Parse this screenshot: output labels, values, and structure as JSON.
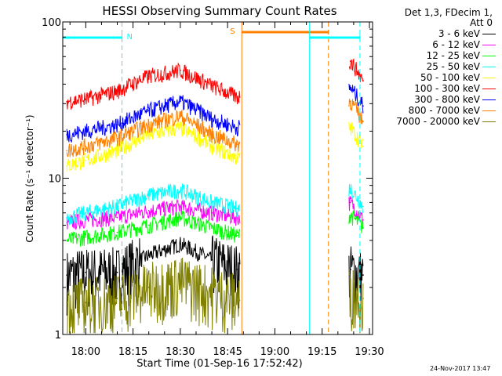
{
  "chart_data": {
    "type": "line",
    "title": "HESSI Observing Summary Count Rates",
    "xlabel": "Start Time (01-Sep-16 17:52:42)",
    "ylabel": "Count Rate (s⁻¹ detector⁻¹)",
    "yscale": "log",
    "ylim": [
      1,
      100
    ],
    "x_unit": "time (HH:MM, 01-Sep-16)",
    "xlim": [
      "17:52:42",
      "19:31:00"
    ],
    "x_ticks": [
      "18:00",
      "18:15",
      "18:30",
      "18:45",
      "19:00",
      "19:15",
      "19:30"
    ],
    "y_ticks": [
      "1",
      "10",
      "100"
    ],
    "legend_header": [
      "Det 1,3, FDecim 1,",
      "Att 0"
    ],
    "legend_position": "right, outside plot",
    "series": [
      {
        "name": "3 - 6 keV",
        "color": "#000000",
        "x": [
          "17:54",
          "18:00",
          "18:10",
          "18:20",
          "18:30",
          "18:40",
          "18:48",
          "19:24",
          "19:28"
        ],
        "y": [
          2.4,
          2.5,
          2.5,
          3.2,
          3.8,
          3.0,
          2.6,
          2.6,
          2.4
        ]
      },
      {
        "name": "6 - 12 keV",
        "color": "#ff00ff",
        "x": [
          "17:54",
          "18:00",
          "18:10",
          "18:20",
          "18:30",
          "18:40",
          "18:48",
          "19:24",
          "19:28"
        ],
        "y": [
          5.2,
          5.4,
          5.6,
          6.2,
          6.6,
          6.0,
          5.6,
          7.0,
          5.4
        ]
      },
      {
        "name": "12 - 25 keV",
        "color": "#00ff00",
        "x": [
          "17:54",
          "18:00",
          "18:10",
          "18:20",
          "18:30",
          "18:40",
          "18:48",
          "19:24",
          "19:28"
        ],
        "y": [
          4.0,
          4.2,
          4.5,
          5.0,
          5.6,
          4.8,
          4.3,
          5.8,
          4.8
        ]
      },
      {
        "name": "25 - 50 keV",
        "color": "#00ffff",
        "x": [
          "17:54",
          "18:00",
          "18:10",
          "18:20",
          "18:30",
          "18:40",
          "18:48",
          "19:24",
          "19:28"
        ],
        "y": [
          5.6,
          6.0,
          6.6,
          7.8,
          8.4,
          7.0,
          6.4,
          8.6,
          6.6
        ]
      },
      {
        "name": "50 - 100 keV",
        "color": "#ffff00",
        "x": [
          "17:54",
          "18:00",
          "18:10",
          "18:20",
          "18:30",
          "18:40",
          "18:48",
          "19:24",
          "19:28"
        ],
        "y": [
          12.0,
          13.0,
          15.0,
          19.0,
          21.0,
          16.0,
          13.5,
          21.0,
          16.0
        ]
      },
      {
        "name": "100 - 300 keV",
        "color": "#ff0000",
        "x": [
          "17:54",
          "18:00",
          "18:10",
          "18:20",
          "18:30",
          "18:40",
          "18:48",
          "19:24",
          "19:28"
        ],
        "y": [
          31.0,
          32.0,
          36.0,
          45.0,
          49.0,
          39.0,
          33.0,
          56.0,
          42.0
        ]
      },
      {
        "name": "300 - 800 keV",
        "color": "#0000ff",
        "x": [
          "17:54",
          "18:00",
          "18:10",
          "18:20",
          "18:30",
          "18:40",
          "18:48",
          "19:24",
          "19:28"
        ],
        "y": [
          19.0,
          20.0,
          22.0,
          27.0,
          31.0,
          24.0,
          21.0,
          38.0,
          29.0
        ]
      },
      {
        "name": "800 - 7000 keV",
        "color": "#ff8000",
        "x": [
          "17:54",
          "18:00",
          "18:10",
          "18:20",
          "18:30",
          "18:40",
          "18:48",
          "19:24",
          "19:28"
        ],
        "y": [
          15.0,
          16.0,
          18.0,
          22.0,
          25.0,
          19.0,
          16.5,
          31.0,
          23.0
        ]
      },
      {
        "name": "7000 - 20000 keV",
        "color": "#808000",
        "x": [
          "17:54",
          "18:00",
          "18:10",
          "18:20",
          "18:30",
          "18:40",
          "18:48",
          "19:24",
          "19:28"
        ],
        "y": [
          1.6,
          1.6,
          1.7,
          2.0,
          2.2,
          1.9,
          1.7,
          1.9,
          1.7
        ]
      }
    ],
    "annotations": [
      {
        "label": "N",
        "kind": "night",
        "color": "#00ffff",
        "x_start": "17:52:42",
        "x_end": "18:11:30"
      },
      {
        "label": "S",
        "kind": "saa",
        "color": "#ff8000",
        "x_start": "18:49:30",
        "x_end": "19:17:00"
      },
      {
        "label": "",
        "kind": "night",
        "color": "#00ffff",
        "x_start": "19:11:00",
        "x_end": "19:27:00"
      }
    ]
  },
  "footer_date": "24-Nov-2017 13:47"
}
